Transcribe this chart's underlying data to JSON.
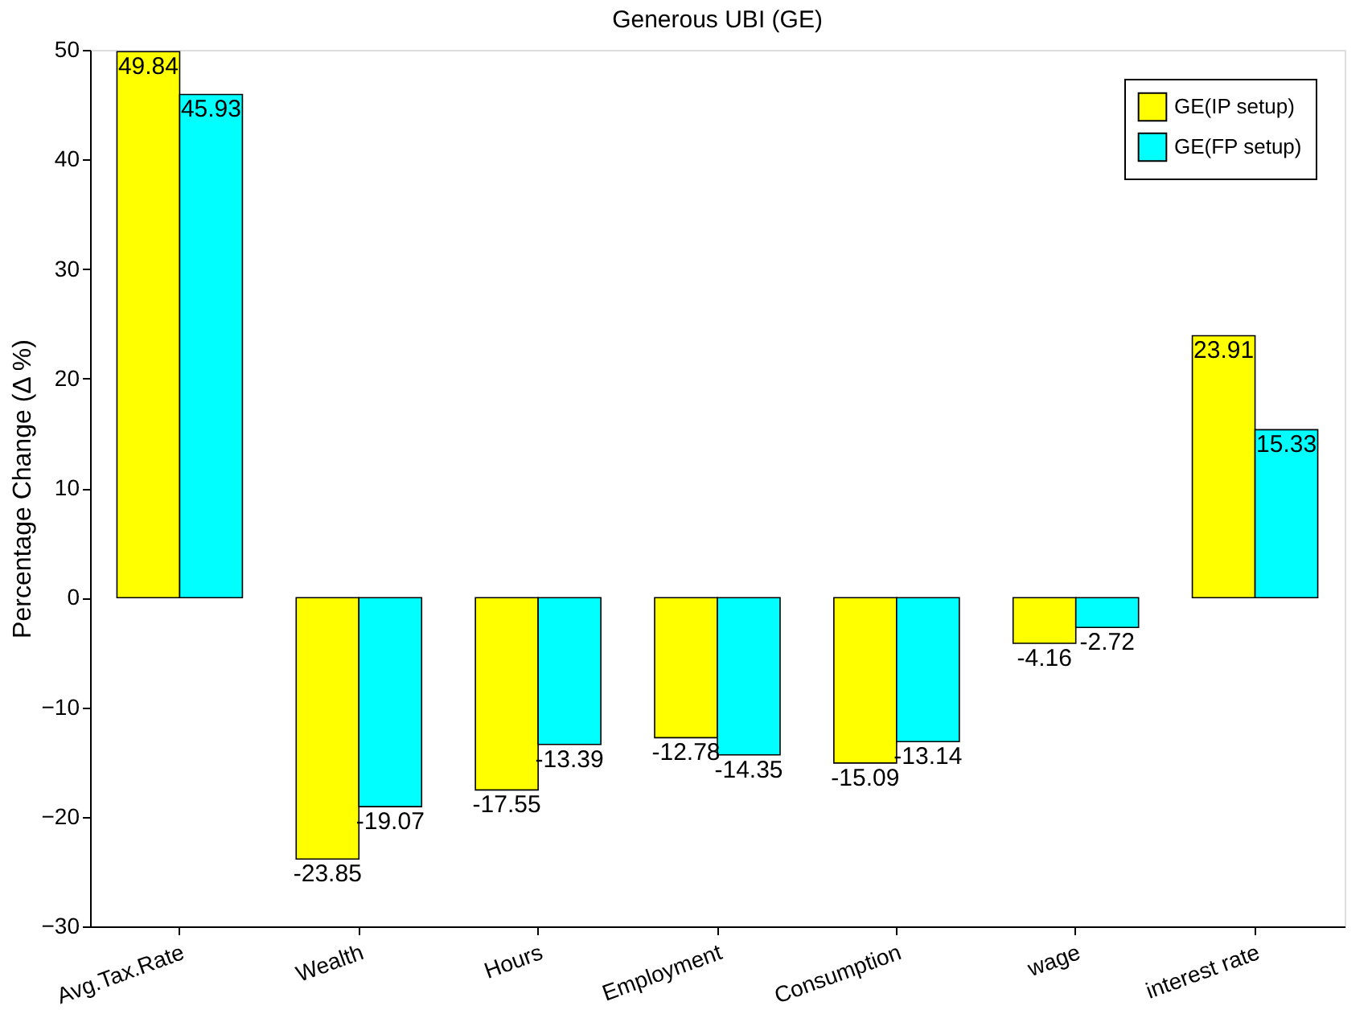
{
  "chart_data": {
    "type": "bar",
    "title": "Generous UBI (GE)",
    "ylabel": "Percentage Change (Δ %)",
    "categories": [
      "Avg.Tax.Rate",
      "Wealth",
      "Hours",
      "Employment",
      "Consumption",
      "wage",
      "interest rate"
    ],
    "series": [
      {
        "name": "GE(IP setup)",
        "color": "#ffff00",
        "values": [
          49.84,
          -23.85,
          -17.55,
          -12.78,
          -15.09,
          -4.16,
          23.91
        ]
      },
      {
        "name": "GE(FP setup)",
        "color": "#00ffff",
        "values": [
          45.93,
          -19.07,
          -13.39,
          -14.35,
          -13.14,
          -2.72,
          15.33
        ]
      }
    ],
    "ylim": [
      -30,
      50
    ],
    "yticks": [
      -30,
      -20,
      -10,
      0,
      10,
      20,
      30,
      40,
      50
    ],
    "data_labels": true,
    "legend": "top right",
    "grid": false
  }
}
